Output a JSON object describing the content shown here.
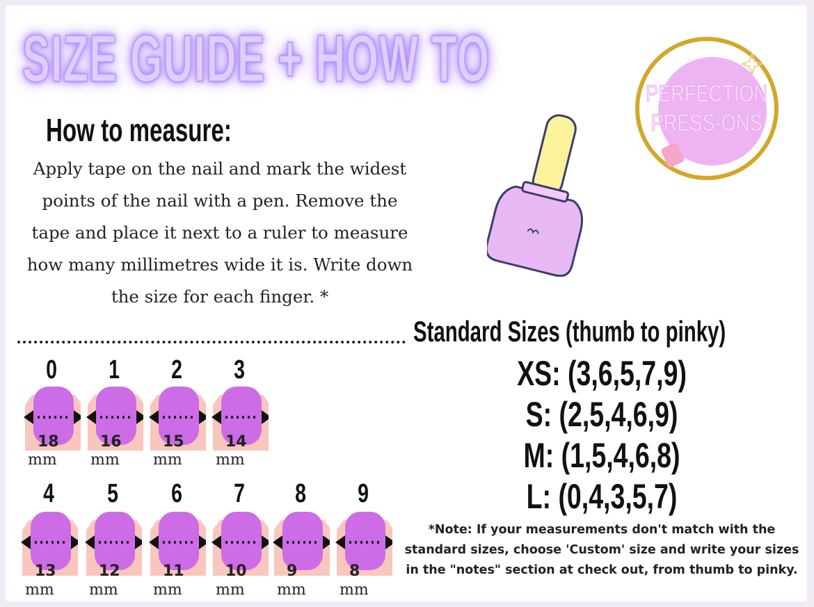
{
  "title": "SIZE GUIDE + HOW TO",
  "logo": {
    "line1": "PERFECTION",
    "line2": "PRESS-ONS",
    "ring_color": "#d4a62a",
    "fill_color": "#eeb3f2"
  },
  "how_to": {
    "heading": "How to measure:",
    "text": "Apply tape on the nail and mark the widest points of the nail with a pen. Remove the tape and place it next to a ruler to measure how many millimetres wide it is. Write down the size for each finger. *"
  },
  "unit": "mm",
  "nail_sizes": [
    {
      "label": "0",
      "width": "18"
    },
    {
      "label": "1",
      "width": "16"
    },
    {
      "label": "2",
      "width": "15"
    },
    {
      "label": "3",
      "width": "14"
    },
    {
      "label": "4",
      "width": "13"
    },
    {
      "label": "5",
      "width": "12"
    },
    {
      "label": "6",
      "width": "11"
    },
    {
      "label": "7",
      "width": "10"
    },
    {
      "label": "8",
      "width": "9"
    },
    {
      "label": "9",
      "width": "8"
    }
  ],
  "standard": {
    "heading": "Standard Sizes (thumb to pinky)",
    "sizes": [
      "XS: (3,6,5,7,9)",
      "S: (2,5,4,6,9)",
      "M: (1,5,4,6,8)",
      "L: (0,4,3,5,7)"
    ]
  },
  "note": "*Note: If your measurements don't match with the standard sizes, choose 'Custom' size and write your sizes in the \"notes\" section at check out, from thumb to pinky.",
  "colors": {
    "nail": "#cc6ce6",
    "skin": "#f8c6bd",
    "glow": "#b58cff"
  }
}
